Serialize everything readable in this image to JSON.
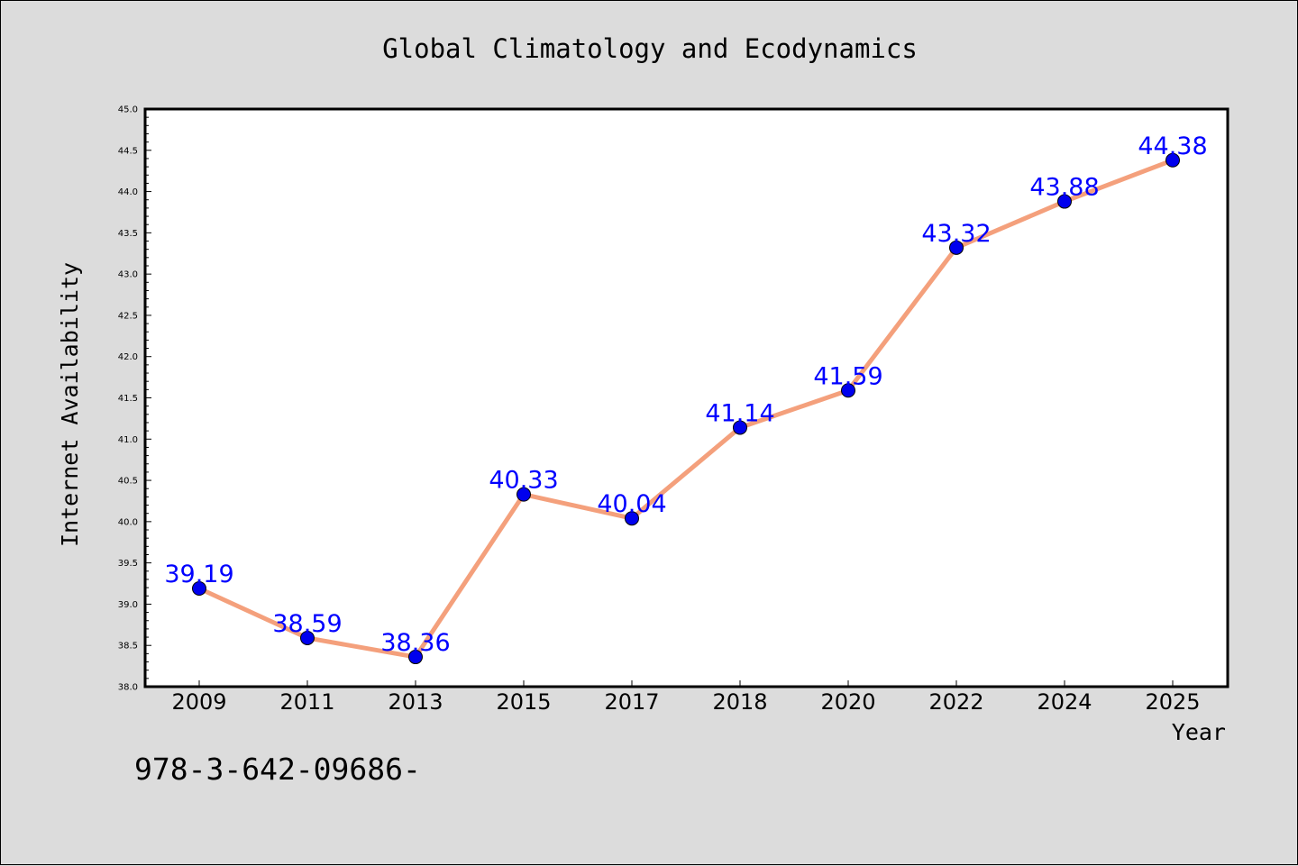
{
  "chart_data": {
    "type": "line",
    "title": "Global Climatology and Ecodynamics",
    "xlabel": "Year",
    "ylabel": "Internet Availability",
    "categories": [
      "2009",
      "2011",
      "2013",
      "2015",
      "2017",
      "2018",
      "2020",
      "2022",
      "2024",
      "2025"
    ],
    "values": [
      39.19,
      38.59,
      38.36,
      40.33,
      40.04,
      41.14,
      41.59,
      43.32,
      43.88,
      44.38
    ],
    "value_labels": [
      "39.19",
      "38.59",
      "38.36",
      "40.33",
      "40.04",
      "41.14",
      "41.59",
      "43.32",
      "43.88",
      "44.38"
    ],
    "ylim": [
      38.0,
      45.0
    ],
    "yticks": [
      "38.0",
      "38.5",
      "39.0",
      "39.5",
      "40.0",
      "40.5",
      "41.0",
      "41.5",
      "42.0",
      "42.5",
      "43.0",
      "43.5",
      "44.0",
      "44.5",
      "45.0"
    ],
    "grid": false,
    "line_color": "#f4a07c",
    "marker_color": "#0000ee",
    "label_color": "#0000ff",
    "background": "#dcdcdc",
    "plot_background": "#ffffff"
  },
  "footer_text": "978-3-642-09686-"
}
